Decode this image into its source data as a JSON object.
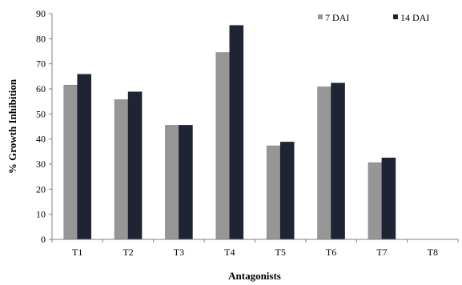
{
  "chart_data": {
    "type": "bar",
    "xlabel": "Antagonists",
    "ylabel": "% Growth Inhibition",
    "ylim": [
      0,
      90
    ],
    "yticks": [
      0,
      10,
      20,
      30,
      40,
      50,
      60,
      70,
      80,
      90
    ],
    "categories": [
      "T1",
      "T2",
      "T3",
      "T4",
      "T5",
      "T6",
      "T7",
      "T8"
    ],
    "series": [
      {
        "name": "7 DAI",
        "color": "#969696",
        "values": [
          61.5,
          55.7,
          45.5,
          74.5,
          37.3,
          60.8,
          30.6,
          0
        ]
      },
      {
        "name": "14 DAI",
        "color": "#1f2435",
        "values": [
          65.8,
          58.8,
          45.5,
          85.3,
          38.8,
          62.3,
          32.5,
          0
        ]
      }
    ],
    "legend_position": "top-right",
    "grid": false
  }
}
